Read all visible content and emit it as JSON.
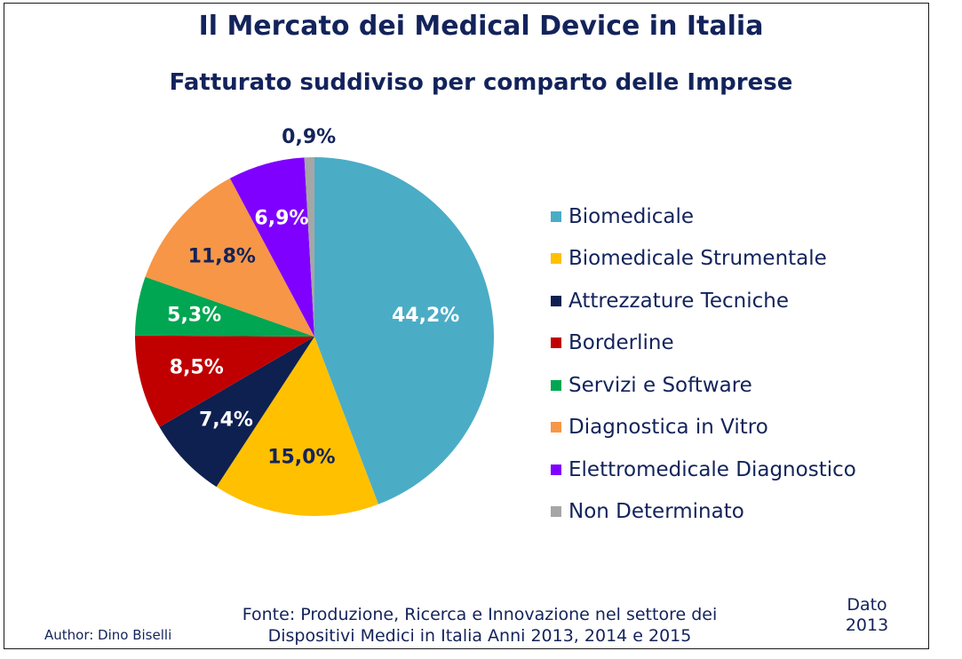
{
  "chart_data": {
    "type": "pie",
    "title": "Il Mercato dei Medical Device in Italia",
    "subtitle": "Fatturato suddiviso per comparto delle Imprese",
    "unit": "%",
    "legend_position": "right",
    "slices": [
      {
        "label": "Biomedicale",
        "value": 44.2,
        "display": "44,2%",
        "color": "#4bacc6",
        "text_color": "#ffffff"
      },
      {
        "label": "Biomedicale Strumentale",
        "value": 15.0,
        "display": "15,0%",
        "color": "#ffc000",
        "text_color": "#13235b"
      },
      {
        "label": "Attrezzature Tecniche",
        "value": 7.4,
        "display": "7,4%",
        "color": "#0e2050",
        "text_color": "#ffffff"
      },
      {
        "label": "Borderline",
        "value": 8.5,
        "display": "8,5%",
        "color": "#c00000",
        "text_color": "#ffffff"
      },
      {
        "label": "Servizi e Software",
        "value": 5.3,
        "display": "5,3%",
        "color": "#00a651",
        "text_color": "#ffffff"
      },
      {
        "label": "Diagnostica in Vitro",
        "value": 11.8,
        "display": "11,8%",
        "color": "#f79646",
        "text_color": "#13235b"
      },
      {
        "label": "Elettromedicale Diagnostico",
        "value": 6.9,
        "display": "6,9%",
        "color": "#7f00ff",
        "text_color": "#ffffff"
      },
      {
        "label": "Non Determinato",
        "value": 0.9,
        "display": "0,9%",
        "color": "#a6a6a6",
        "text_color": "#13235b"
      }
    ]
  },
  "source": {
    "line1": "Fonte: Produzione, Ricerca e Innovazione nel settore dei",
    "line2": "Dispositivi Medici in Italia  Anni 2013, 2014 e 2015"
  },
  "author": "Author: Dino Biselli",
  "dato": {
    "line1": "Dato",
    "line2": "2013"
  }
}
